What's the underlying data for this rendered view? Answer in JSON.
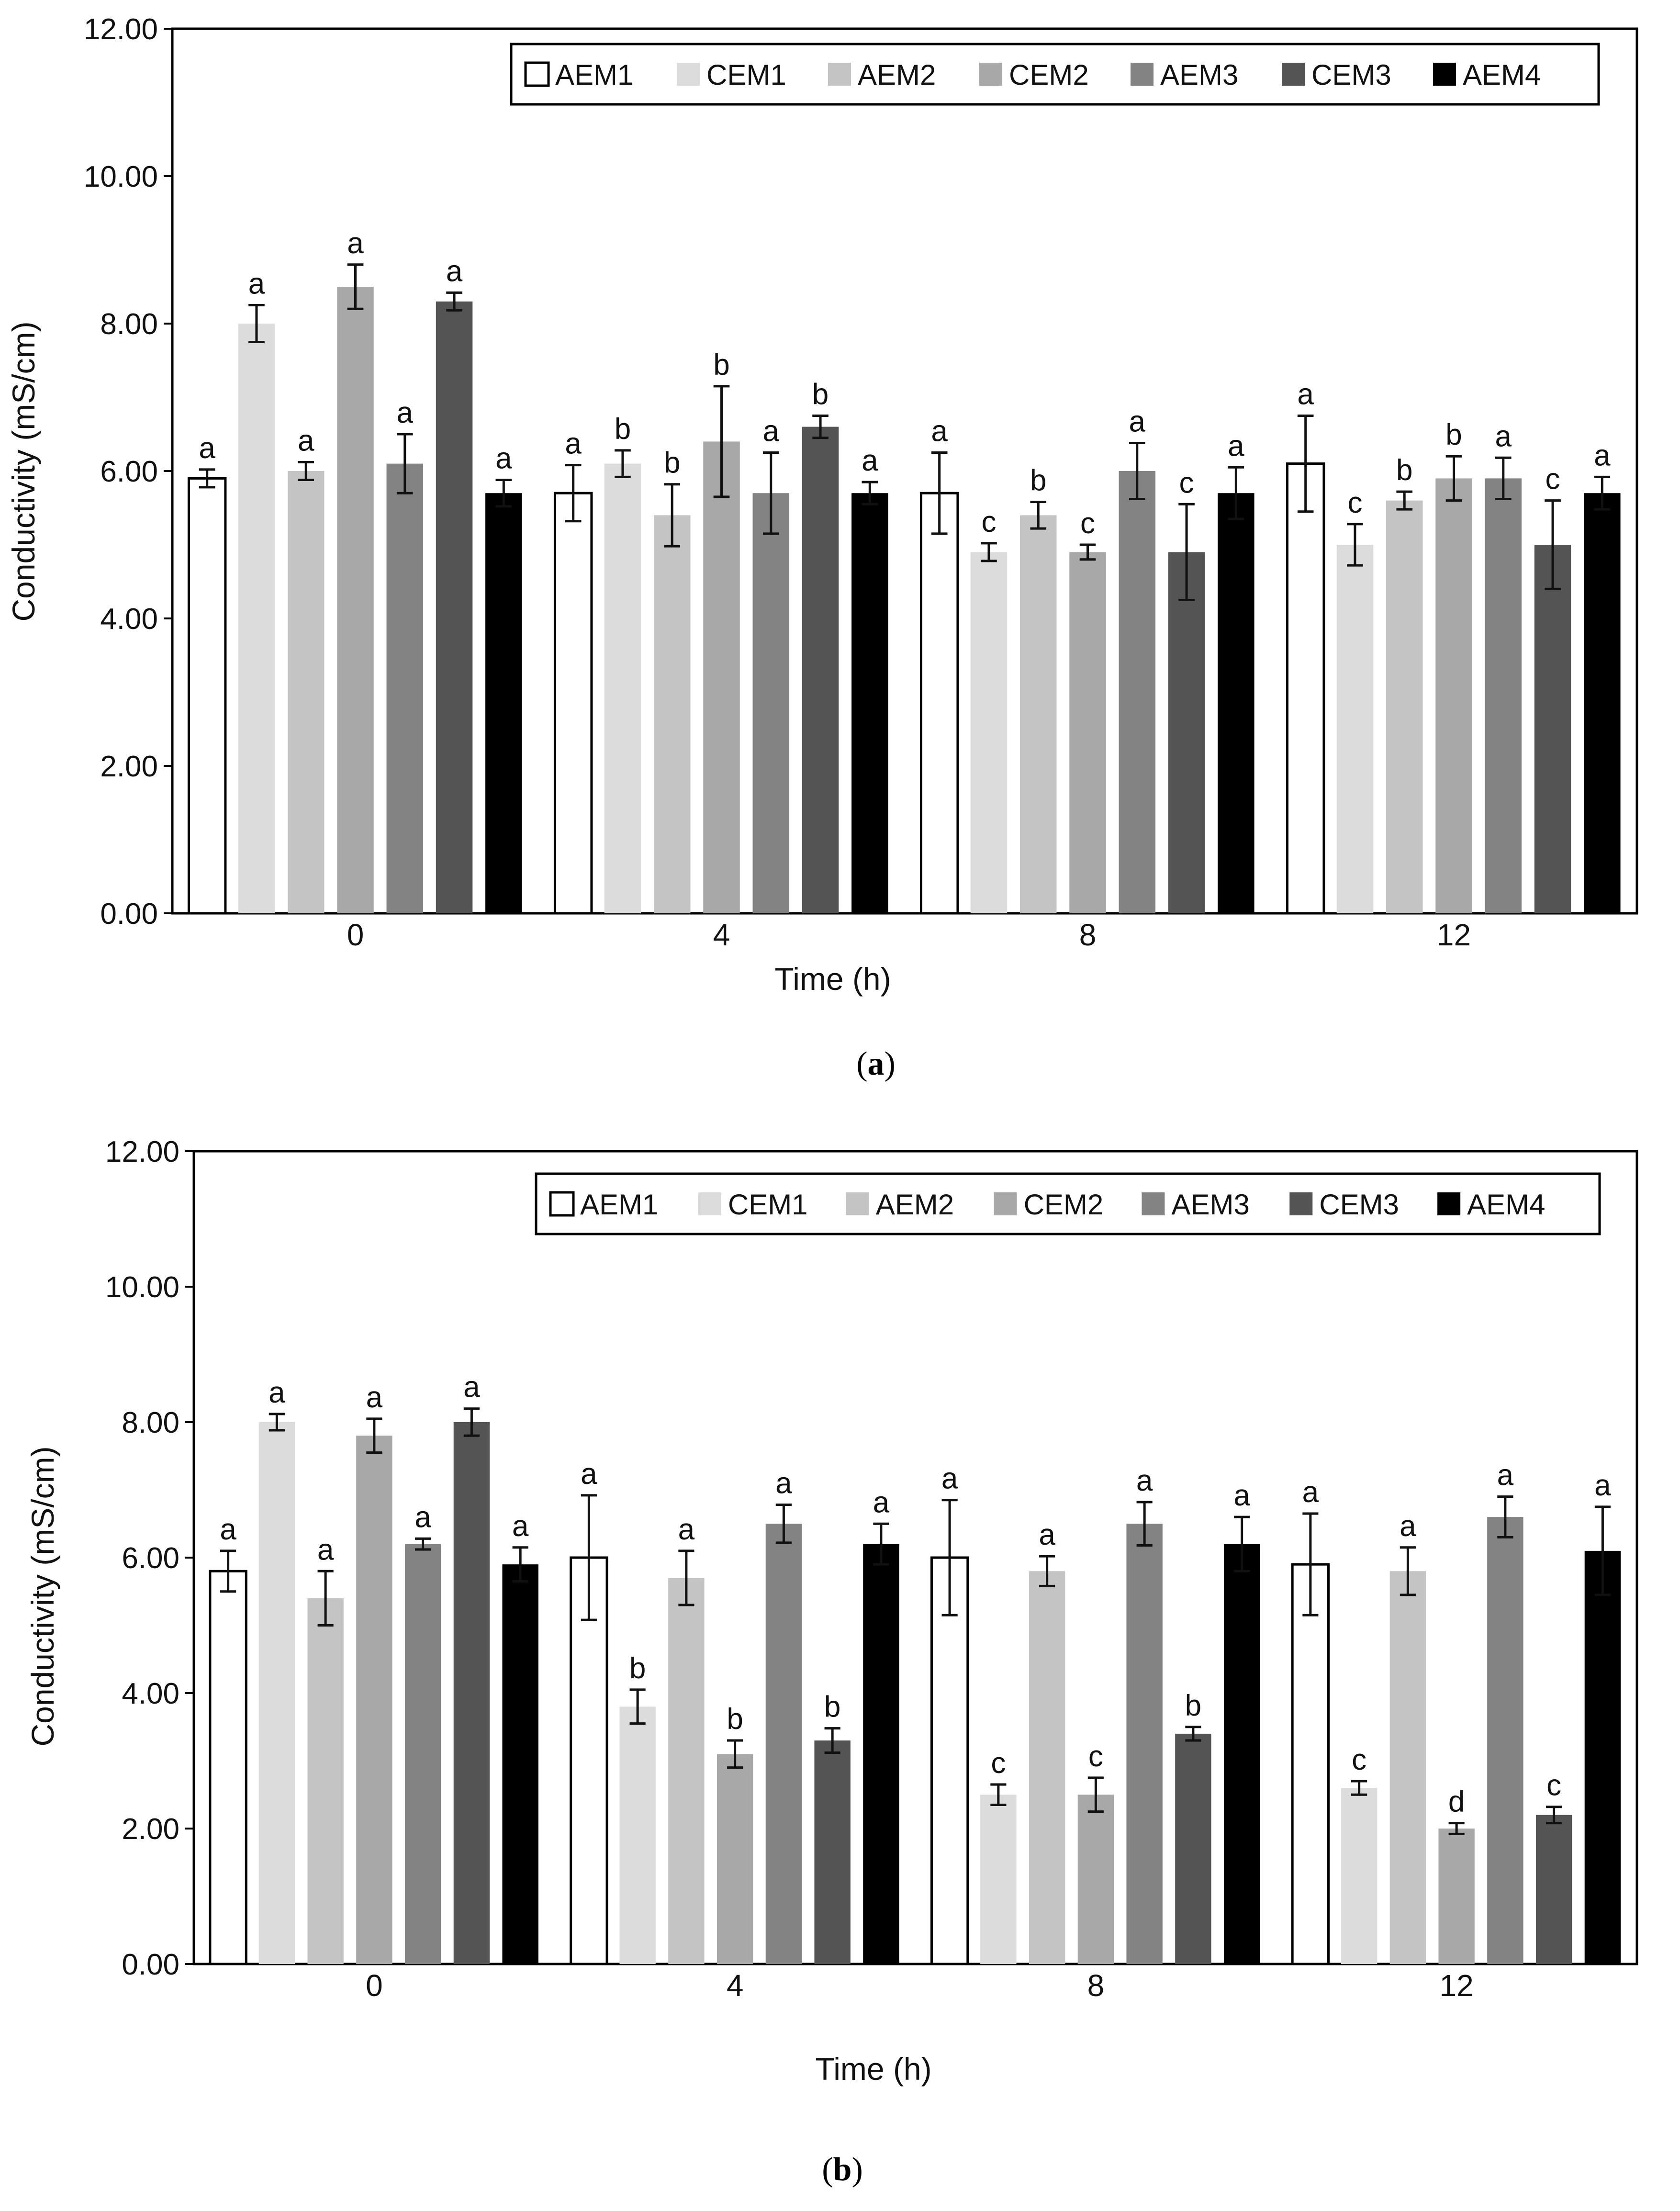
{
  "chart_data": [
    {
      "type": "bar",
      "panel_label": "a",
      "xlabel": "Time (h)",
      "ylabel": "Conductivity (mS/cm)",
      "ylim": [
        0,
        12
      ],
      "yticks": [
        "0.00",
        "2.00",
        "4.00",
        "6.00",
        "8.00",
        "10.00",
        "12.00"
      ],
      "categories": [
        "0",
        "4",
        "8",
        "12"
      ],
      "legend_position": "top-right",
      "series": [
        {
          "name": "AEM1",
          "values": [
            5.9,
            5.7,
            5.7,
            6.1
          ],
          "errors": [
            0.12,
            0.38,
            0.55,
            0.65
          ],
          "letters": [
            "a",
            "a",
            "a",
            "a"
          ]
        },
        {
          "name": "CEM1",
          "values": [
            8.0,
            6.1,
            4.9,
            5.0
          ],
          "errors": [
            0.25,
            0.18,
            0.12,
            0.28
          ],
          "letters": [
            "a",
            "b",
            "c",
            "c"
          ]
        },
        {
          "name": "AEM2",
          "values": [
            6.0,
            5.4,
            5.4,
            5.6
          ],
          "errors": [
            0.12,
            0.42,
            0.18,
            0.12
          ],
          "letters": [
            "a",
            "b",
            "b",
            "b"
          ]
        },
        {
          "name": "CEM2",
          "values": [
            8.5,
            6.4,
            4.9,
            5.9
          ],
          "errors": [
            0.3,
            0.75,
            0.1,
            0.3
          ],
          "letters": [
            "a",
            "b",
            "c",
            "b"
          ]
        },
        {
          "name": "AEM3",
          "values": [
            6.1,
            5.7,
            6.0,
            5.9
          ],
          "errors": [
            0.4,
            0.55,
            0.38,
            0.28
          ],
          "letters": [
            "a",
            "a",
            "a",
            "a"
          ]
        },
        {
          "name": "CEM3",
          "values": [
            8.3,
            6.6,
            4.9,
            5.0
          ],
          "errors": [
            0.12,
            0.15,
            0.65,
            0.6
          ],
          "letters": [
            "a",
            "b",
            "c",
            "c"
          ]
        },
        {
          "name": "AEM4",
          "values": [
            5.7,
            5.7,
            5.7,
            5.7
          ],
          "errors": [
            0.18,
            0.15,
            0.35,
            0.22
          ],
          "letters": [
            "a",
            "a",
            "a",
            "a"
          ]
        }
      ],
      "colors": [
        "#ffffff",
        "#dcdcdc",
        "#c4c4c4",
        "#a8a8a8",
        "#838383",
        "#545454",
        "#000000"
      ]
    },
    {
      "type": "bar",
      "panel_label": "b",
      "xlabel": "Time (h)",
      "ylabel": "Conductivity (mS/cm)",
      "ylim": [
        0,
        12
      ],
      "yticks": [
        "0.00",
        "2.00",
        "4.00",
        "6.00",
        "8.00",
        "10.00",
        "12.00"
      ],
      "categories": [
        "0",
        "4",
        "8",
        "12"
      ],
      "legend_position": "top-right",
      "series": [
        {
          "name": "AEM1",
          "values": [
            5.8,
            6.0,
            6.0,
            5.9
          ],
          "errors": [
            0.3,
            0.92,
            0.85,
            0.75
          ],
          "letters": [
            "a",
            "a",
            "a",
            "a"
          ]
        },
        {
          "name": "CEM1",
          "values": [
            8.0,
            3.8,
            2.5,
            2.6
          ],
          "errors": [
            0.12,
            0.25,
            0.15,
            0.1
          ],
          "letters": [
            "a",
            "b",
            "c",
            "c"
          ]
        },
        {
          "name": "AEM2",
          "values": [
            5.4,
            5.7,
            5.8,
            5.8
          ],
          "errors": [
            0.4,
            0.4,
            0.22,
            0.35
          ],
          "letters": [
            "a",
            "a",
            "a",
            "a"
          ]
        },
        {
          "name": "CEM2",
          "values": [
            7.8,
            3.1,
            2.5,
            2.0
          ],
          "errors": [
            0.25,
            0.2,
            0.25,
            0.08
          ],
          "letters": [
            "a",
            "b",
            "c",
            "d"
          ]
        },
        {
          "name": "AEM3",
          "values": [
            6.2,
            6.5,
            6.5,
            6.6
          ],
          "errors": [
            0.08,
            0.28,
            0.32,
            0.3
          ],
          "letters": [
            "a",
            "a",
            "a",
            "a"
          ]
        },
        {
          "name": "CEM3",
          "values": [
            8.0,
            3.3,
            3.4,
            2.2
          ],
          "errors": [
            0.2,
            0.18,
            0.1,
            0.12
          ],
          "letters": [
            "a",
            "b",
            "b",
            "c"
          ]
        },
        {
          "name": "AEM4",
          "values": [
            5.9,
            6.2,
            6.2,
            6.1
          ],
          "errors": [
            0.25,
            0.3,
            0.4,
            0.65
          ],
          "letters": [
            "a",
            "a",
            "a",
            "a"
          ]
        }
      ],
      "colors": [
        "#ffffff",
        "#dcdcdc",
        "#c4c4c4",
        "#a8a8a8",
        "#838383",
        "#545454",
        "#000000"
      ]
    }
  ]
}
